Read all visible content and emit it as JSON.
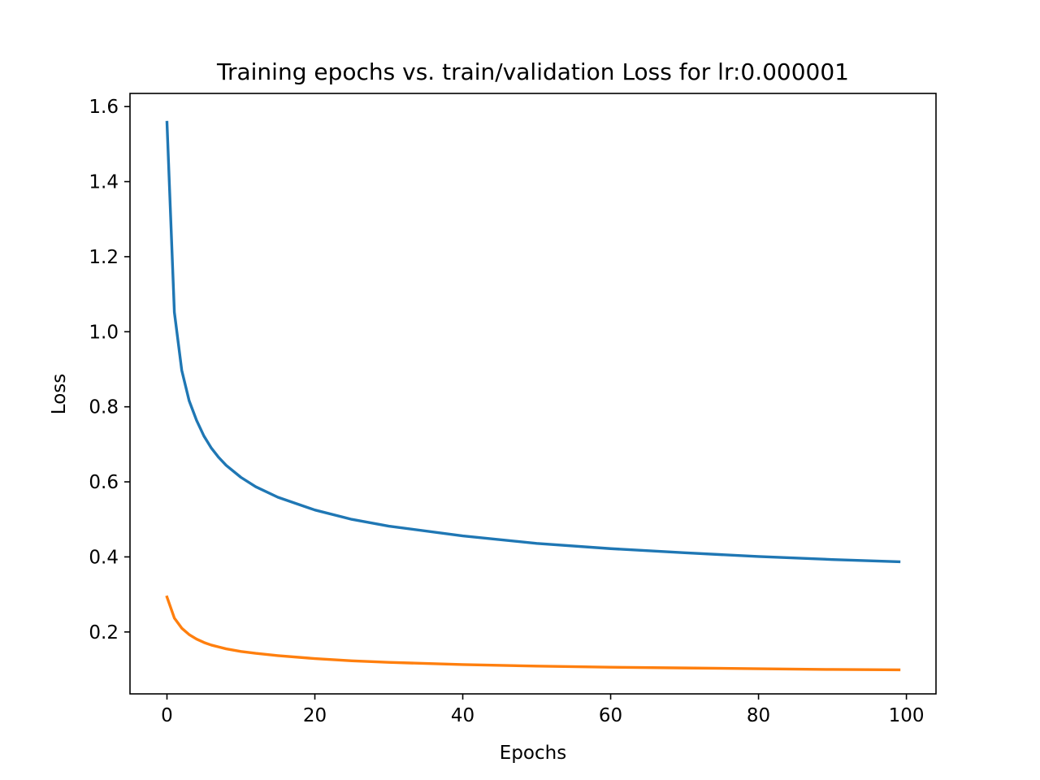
{
  "chart_data": {
    "type": "line",
    "title": "Training epochs vs. train/validation Loss for lr:0.000001",
    "xlabel": "Epochs",
    "ylabel": "Loss",
    "xlim": [
      -5,
      104
    ],
    "ylim": [
      0.035,
      1.635
    ],
    "xticks": [
      0,
      20,
      40,
      60,
      80,
      100
    ],
    "xtick_labels": [
      "0",
      "20",
      "40",
      "60",
      "80",
      "100"
    ],
    "yticks": [
      0.2,
      0.4,
      0.6,
      0.8,
      1.0,
      1.2,
      1.4,
      1.6
    ],
    "ytick_labels": [
      "0.2",
      "0.4",
      "0.6",
      "0.8",
      "1.0",
      "1.2",
      "1.4",
      "1.6"
    ],
    "grid": false,
    "legend": "none",
    "x": [
      0,
      1,
      2,
      3,
      4,
      5,
      6,
      7,
      8,
      10,
      12,
      15,
      20,
      25,
      30,
      40,
      50,
      60,
      70,
      80,
      90,
      99
    ],
    "series": [
      {
        "color": "#1f77b4",
        "values": [
          1.558,
          1.052,
          0.897,
          0.816,
          0.764,
          0.722,
          0.69,
          0.665,
          0.644,
          0.612,
          0.587,
          0.559,
          0.525,
          0.5,
          0.482,
          0.456,
          0.436,
          0.422,
          0.411,
          0.401,
          0.393,
          0.387
        ]
      },
      {
        "color": "#ff7f0e",
        "values": [
          0.293,
          0.237,
          0.21,
          0.193,
          0.181,
          0.172,
          0.165,
          0.16,
          0.155,
          0.148,
          0.143,
          0.137,
          0.129,
          0.123,
          0.119,
          0.113,
          0.109,
          0.106,
          0.104,
          0.102,
          0.1,
          0.099
        ]
      }
    ]
  }
}
